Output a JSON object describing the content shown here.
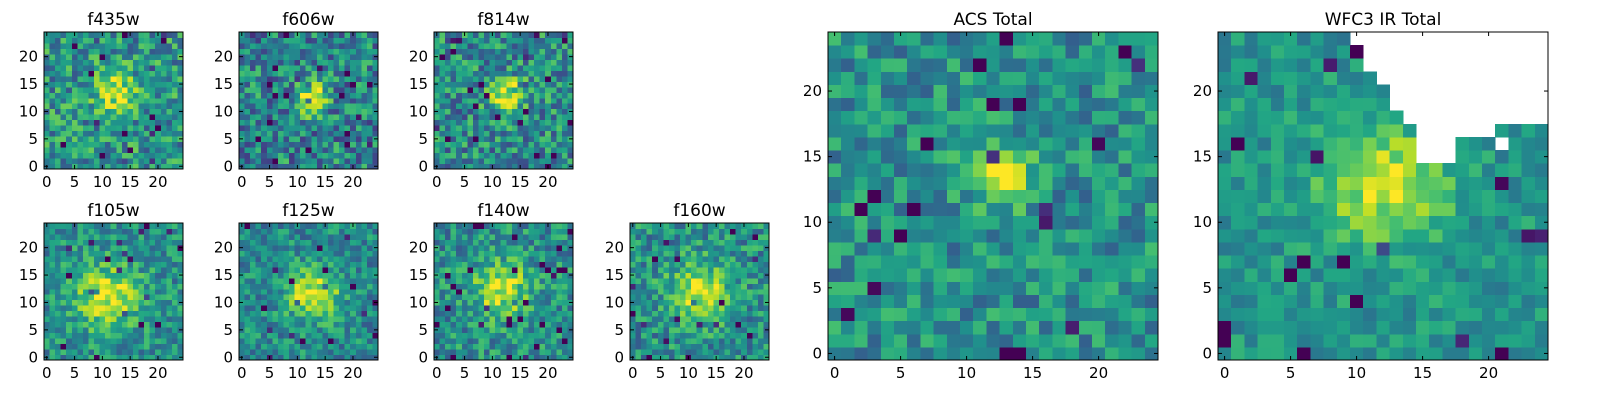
{
  "chart_data": [
    {
      "id": "f435w",
      "type": "heatmap",
      "title": "f435w",
      "size": 25,
      "colormap": "viridis",
      "seed": 11,
      "noise": 0.26,
      "peak": [
        12.5,
        13.5
      ],
      "sigma": 2.6,
      "amp": 0.42,
      "base": 0.52,
      "xticks": [
        0,
        5,
        10,
        15,
        20
      ],
      "yticks": [
        0,
        5,
        10,
        15,
        20
      ],
      "xlim": [
        0,
        24
      ],
      "ylim": [
        0,
        24
      ]
    },
    {
      "id": "f606w",
      "type": "heatmap",
      "title": "f606w",
      "size": 25,
      "colormap": "viridis",
      "seed": 23,
      "noise": 0.28,
      "peak": [
        12.5,
        12.5
      ],
      "sigma": 2.0,
      "amp": 0.55,
      "base": 0.45,
      "xticks": [
        0,
        5,
        10,
        15,
        20
      ],
      "yticks": [
        0,
        5,
        10,
        15,
        20
      ],
      "xlim": [
        0,
        24
      ],
      "ylim": [
        0,
        24
      ]
    },
    {
      "id": "f814w",
      "type": "heatmap",
      "title": "f814w",
      "size": 25,
      "colormap": "viridis",
      "seed": 37,
      "noise": 0.27,
      "peak": [
        12.5,
        13.0
      ],
      "sigma": 2.2,
      "amp": 0.5,
      "base": 0.48,
      "xticks": [
        0,
        5,
        10,
        15,
        20
      ],
      "yticks": [
        0,
        5,
        10,
        15,
        20
      ],
      "xlim": [
        0,
        24
      ],
      "ylim": [
        0,
        24
      ]
    },
    {
      "id": "f105w",
      "type": "heatmap",
      "title": "f105w",
      "size": 25,
      "colormap": "viridis",
      "seed": 41,
      "noise": 0.2,
      "peak": [
        11.0,
        11.0
      ],
      "sigma": 4.0,
      "amp": 0.45,
      "base": 0.5,
      "xticks": [
        0,
        5,
        10,
        15,
        20
      ],
      "yticks": [
        0,
        5,
        10,
        15,
        20
      ],
      "xlim": [
        0,
        24
      ],
      "ylim": [
        0,
        24
      ]
    },
    {
      "id": "f125w",
      "type": "heatmap",
      "title": "f125w",
      "size": 25,
      "colormap": "viridis",
      "seed": 53,
      "noise": 0.2,
      "peak": [
        13.0,
        11.5
      ],
      "sigma": 3.2,
      "amp": 0.5,
      "base": 0.48,
      "xticks": [
        0,
        5,
        10,
        15,
        20
      ],
      "yticks": [
        0,
        5,
        10,
        15,
        20
      ],
      "xlim": [
        0,
        24
      ],
      "ylim": [
        0,
        24
      ]
    },
    {
      "id": "f140w",
      "type": "heatmap",
      "title": "f140w",
      "size": 25,
      "colormap": "viridis",
      "seed": 67,
      "noise": 0.22,
      "peak": [
        11.5,
        12.5
      ],
      "sigma": 3.4,
      "amp": 0.45,
      "base": 0.5,
      "xticks": [
        0,
        5,
        10,
        15,
        20
      ],
      "yticks": [
        0,
        5,
        10,
        15,
        20
      ],
      "xlim": [
        0,
        24
      ],
      "ylim": [
        0,
        24
      ]
    },
    {
      "id": "f160w",
      "type": "heatmap",
      "title": "f160w",
      "size": 25,
      "colormap": "viridis",
      "seed": 79,
      "noise": 0.22,
      "peak": [
        12.0,
        12.0
      ],
      "sigma": 3.6,
      "amp": 0.45,
      "base": 0.5,
      "xticks": [
        0,
        5,
        10,
        15,
        20
      ],
      "yticks": [
        0,
        5,
        10,
        15,
        20
      ],
      "xlim": [
        0,
        24
      ],
      "ylim": [
        0,
        24
      ]
    },
    {
      "id": "acs-total",
      "type": "heatmap",
      "title": "ACS Total",
      "size": 25,
      "colormap": "viridis",
      "seed": 97,
      "noise": 0.2,
      "peak": [
        12.5,
        13.5
      ],
      "sigma": 1.6,
      "amp": 0.45,
      "base": 0.5,
      "xticks": [
        0,
        5,
        10,
        15,
        20
      ],
      "yticks": [
        0,
        5,
        10,
        15,
        20
      ],
      "xlim": [
        0,
        24
      ],
      "ylim": [
        0,
        24
      ]
    },
    {
      "id": "wfc3-ir-total",
      "type": "heatmap",
      "title": "WFC3 IR Total",
      "size": 25,
      "colormap": "viridis",
      "seed": 101,
      "noise": 0.14,
      "peak": [
        12.0,
        13.0
      ],
      "sigma": 3.4,
      "amp": 0.4,
      "base": 0.52,
      "mask": true,
      "xticks": [
        0,
        5,
        10,
        15,
        20
      ],
      "yticks": [
        0,
        5,
        10,
        15,
        20
      ],
      "xlim": [
        0,
        24
      ],
      "ylim": [
        0,
        24
      ]
    }
  ]
}
